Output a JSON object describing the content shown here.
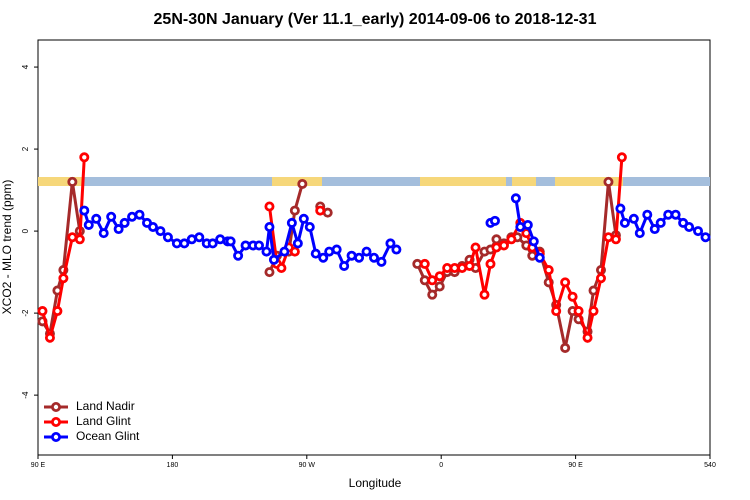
{
  "chart_data": {
    "type": "line",
    "title": "25N-30N January (Ver 11.1_early)   2014-09-06 to 2018-12-31",
    "x_label": "Longitude",
    "y_label": "XCO2 - MLO trend (ppm)",
    "xlim": [
      90,
      540
    ],
    "ylim": [
      -5.46,
      4.66
    ],
    "xticks": [
      {
        "value": 90,
        "label": "90 E"
      },
      180,
      {
        "value": 270,
        "label": "90 W"
      },
      {
        "value": 360,
        "label": "0"
      },
      {
        "value": 450,
        "label": "90 E"
      },
      540
    ],
    "yticks": [
      -4,
      -2,
      0,
      2,
      4
    ],
    "legend": "bottom-left",
    "series": [
      {
        "name": "Land Nadir",
        "color": "#a52a2a",
        "x": [
          93,
          98,
          103,
          107,
          113,
          118,
          null,
          245,
          250,
          258,
          262,
          267,
          null,
          279,
          284,
          null,
          344,
          349,
          354,
          359,
          364,
          369,
          374,
          379,
          383,
          389,
          393,
          397,
          402,
          407,
          411,
          417,
          421,
          426,
          432,
          437,
          443,
          448,
          452,
          458,
          462,
          467,
          472,
          477
        ],
        "values": [
          -2.2,
          -2.5,
          -1.45,
          -0.95,
          1.2,
          0,
          null,
          -1.0,
          -0.6,
          -0.5,
          0.5,
          1.15,
          null,
          0.6,
          0.45,
          null,
          -0.8,
          -1.2,
          -1.55,
          -1.35,
          -1.0,
          -1.0,
          -0.85,
          -0.7,
          -0.9,
          -0.5,
          -0.45,
          -0.2,
          -0.3,
          -0.15,
          -0.15,
          -0.35,
          -0.6,
          -0.5,
          -1.25,
          -1.8,
          -2.85,
          -1.95,
          -2.15,
          -2.45,
          -1.45,
          -0.95,
          1.2,
          -0.1
        ]
      },
      {
        "name": "Land Glint",
        "color": "#ff0000",
        "x": [
          93,
          98,
          103,
          107,
          113,
          118,
          121,
          null,
          245,
          250,
          253,
          258,
          262,
          null,
          279,
          null,
          349,
          354,
          359,
          364,
          369,
          374,
          379,
          383,
          389,
          393,
          397,
          402,
          407,
          413,
          417,
          421,
          426,
          432,
          437,
          443,
          448,
          452,
          458,
          462,
          467,
          472,
          477,
          481
        ],
        "values": [
          -1.95,
          -2.6,
          -1.95,
          -1.15,
          -0.15,
          -0.2,
          1.8,
          null,
          0.6,
          -0.8,
          -0.9,
          -0.4,
          -0.5,
          null,
          0.5,
          null,
          -0.8,
          -1.2,
          -1.1,
          -0.9,
          -0.9,
          -0.9,
          -0.85,
          -0.4,
          -1.55,
          -0.8,
          -0.4,
          -0.35,
          -0.2,
          0.2,
          -0.05,
          -0.4,
          -0.55,
          -0.95,
          -1.95,
          -1.25,
          -1.6,
          -1.95,
          -2.6,
          -1.95,
          -1.15,
          -0.15,
          -0.2,
          1.8
        ]
      },
      {
        "name": "Ocean Glint",
        "color": "#0000ff",
        "x": [
          121,
          124,
          129,
          134,
          139,
          144,
          148,
          153,
          158,
          163,
          167,
          172,
          177,
          183,
          188,
          193,
          198,
          203,
          207,
          212,
          217,
          219,
          224,
          229,
          234,
          238,
          243,
          245,
          248,
          255,
          260,
          264,
          268,
          272,
          276,
          281,
          285,
          290,
          295,
          300,
          305,
          310,
          315,
          320,
          326,
          330,
          null,
          393,
          396,
          null,
          410,
          413,
          418,
          422,
          426,
          null,
          480,
          483,
          489,
          493,
          498,
          503,
          507,
          512,
          517,
          522,
          526,
          532,
          537
        ],
        "values": [
          0.5,
          0.15,
          0.3,
          -0.05,
          0.35,
          0.05,
          0.2,
          0.35,
          0.4,
          0.2,
          0.1,
          0.0,
          -0.15,
          -0.3,
          -0.3,
          -0.2,
          -0.15,
          -0.3,
          -0.3,
          -0.2,
          -0.25,
          -0.25,
          -0.6,
          -0.35,
          -0.35,
          -0.35,
          -0.5,
          0.1,
          -0.7,
          -0.5,
          0.2,
          -0.3,
          0.3,
          0.1,
          -0.55,
          -0.65,
          -0.5,
          -0.45,
          -0.85,
          -0.6,
          -0.65,
          -0.5,
          -0.65,
          -0.75,
          -0.3,
          -0.45,
          null,
          0.2,
          0.25,
          null,
          0.8,
          0.1,
          0.15,
          -0.25,
          -0.65,
          null,
          0.55,
          0.2,
          0.3,
          -0.05,
          0.4,
          0.05,
          0.2,
          0.4,
          0.4,
          0.2,
          0.1,
          0.0,
          -0.15
        ]
      }
    ]
  }
}
